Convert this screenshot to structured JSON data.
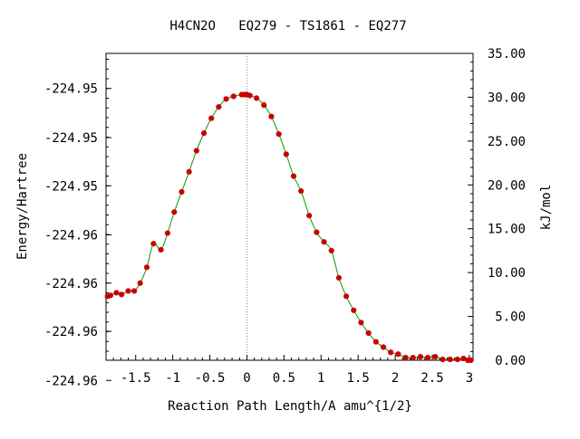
{
  "chart_data": {
    "type": "line",
    "title": "H4CN2O   EQ279 - TS1861 - EQ277",
    "xlabel": "Reaction Path Length/A amu^{1/2}",
    "ylabel_left": "Energy/Hartree",
    "ylabel_right": "kJ/mol",
    "xlim": [
      -1.9,
      3.05
    ],
    "ylim_right": [
      0,
      35
    ],
    "x_ticks": [
      "-1.5",
      "-1",
      "-0.5",
      "0",
      "0.5",
      "1",
      "1.5",
      "2",
      "2.5",
      "3"
    ],
    "x_tick_values": [
      -1.5,
      -1,
      -0.5,
      0,
      0.5,
      1,
      1.5,
      2,
      2.5,
      3
    ],
    "left_ticks": [
      "-224.95",
      "-224.95",
      "-224.95",
      "-224.96",
      "-224.96",
      "-224.96",
      "-224.96"
    ],
    "left_tick_values_kjmol": [
      31.0,
      25.4,
      19.9,
      14.3,
      8.8,
      3.3,
      -2.3
    ],
    "right_ticks": [
      "35.00",
      "30.00",
      "25.00",
      "20.00",
      "15.00",
      "10.00",
      "5.00",
      "0.00"
    ],
    "right_tick_values": [
      35,
      30,
      25,
      20,
      15,
      10,
      5,
      0
    ],
    "ts_marker_x": 0,
    "grid": false,
    "series": [
      {
        "line_color": "#00a000",
        "marker_color": "#cc0000",
        "x": [
          -1.88,
          -1.84,
          -1.76,
          -1.69,
          -1.6,
          -1.52,
          -1.44,
          -1.35,
          -1.26,
          -1.16,
          -1.07,
          -0.98,
          -0.88,
          -0.78,
          -0.68,
          -0.58,
          -0.48,
          -0.38,
          -0.28,
          -0.18,
          -0.07,
          -0.03,
          0.0,
          0.04,
          0.13,
          0.23,
          0.33,
          0.43,
          0.53,
          0.63,
          0.73,
          0.84,
          0.94,
          1.04,
          1.14,
          1.24,
          1.34,
          1.44,
          1.54,
          1.64,
          1.74,
          1.84,
          1.94,
          2.04,
          2.14,
          2.24,
          2.34,
          2.44,
          2.54,
          2.64,
          2.74,
          2.84,
          2.92,
          2.98,
          3.02
        ],
        "y": [
          7.3,
          7.4,
          7.7,
          7.5,
          7.9,
          7.9,
          8.8,
          10.6,
          13.3,
          12.6,
          14.5,
          16.9,
          19.2,
          21.5,
          23.9,
          25.9,
          27.6,
          28.9,
          29.8,
          30.1,
          30.3,
          30.3,
          30.3,
          30.2,
          29.9,
          29.1,
          27.8,
          25.8,
          23.5,
          21.0,
          19.3,
          16.5,
          14.6,
          13.5,
          12.5,
          9.4,
          7.3,
          5.7,
          4.3,
          3.1,
          2.1,
          1.5,
          0.9,
          0.7,
          0.3,
          0.3,
          0.4,
          0.3,
          0.4,
          0.1,
          0.1,
          0.1,
          0.2,
          0.0,
          0.0
        ]
      }
    ]
  }
}
